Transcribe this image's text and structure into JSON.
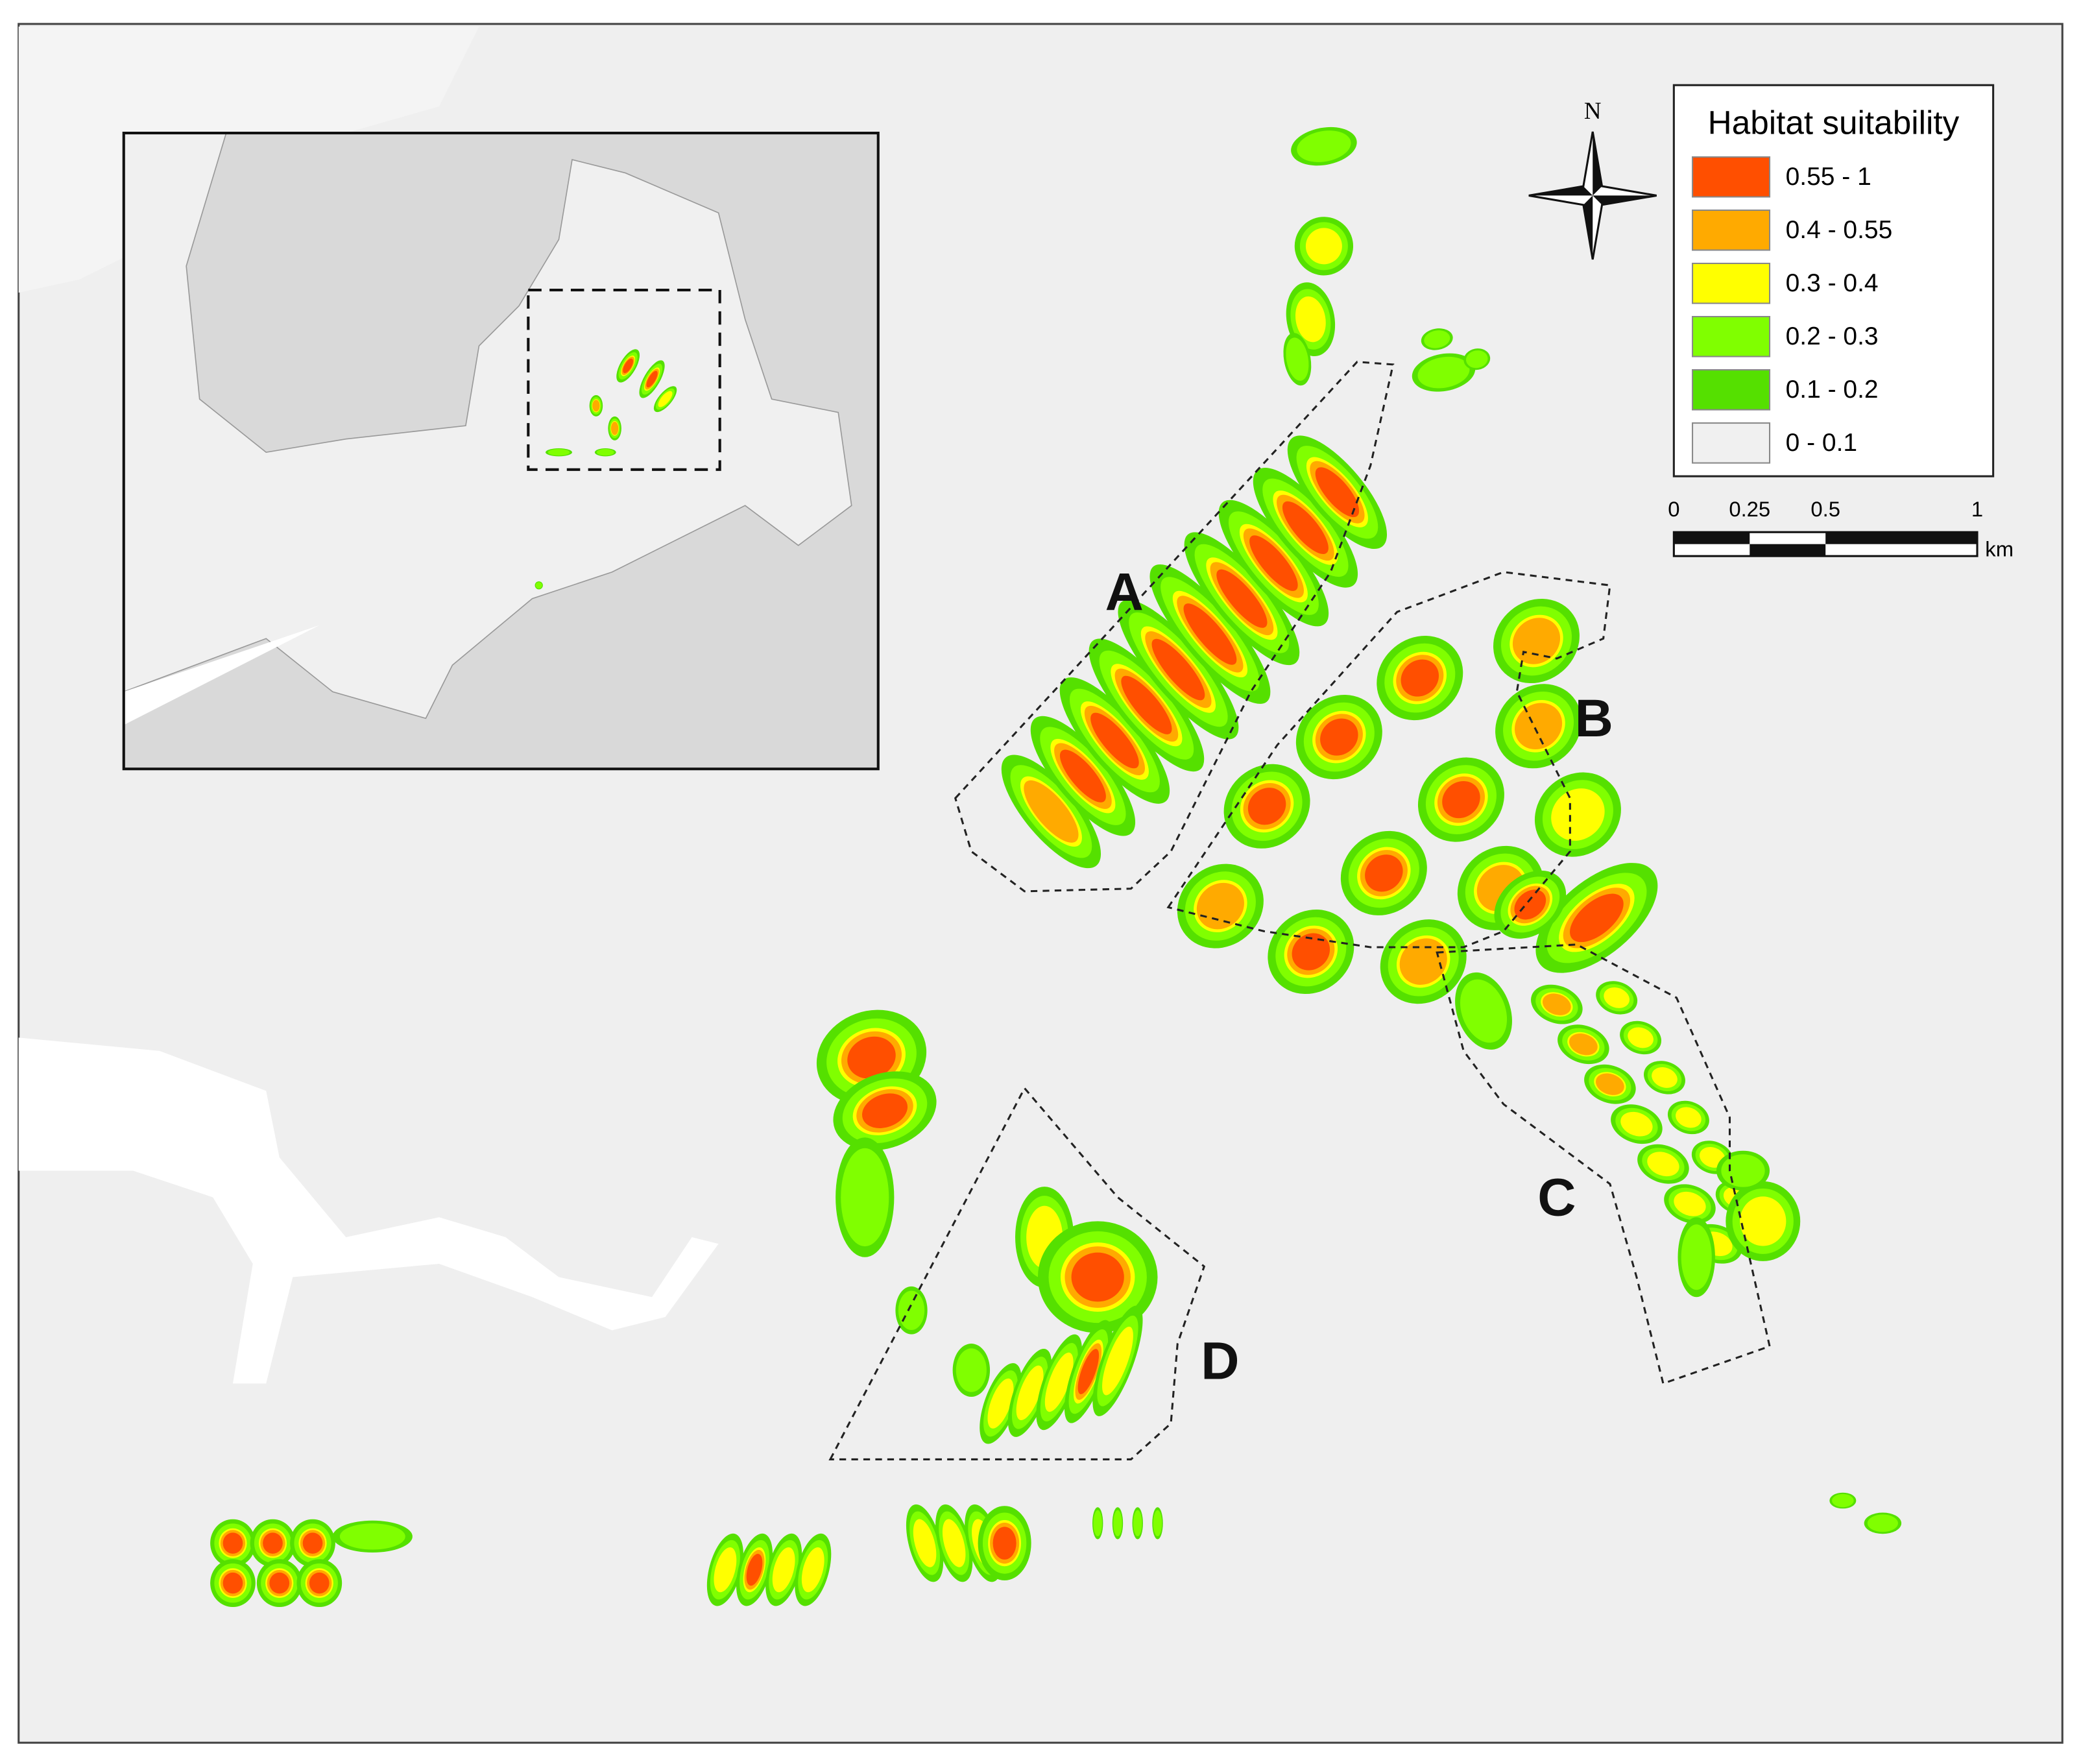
{
  "map": {
    "legend": {
      "title": "Habitat suitability",
      "items": [
        {
          "label": "0.55 - 1",
          "color": "#ff4f00"
        },
        {
          "label": "0.4 - 0.55",
          "color": "#ffaa00"
        },
        {
          "label": "0.3 - 0.4",
          "color": "#ffff00"
        },
        {
          "label": "0.2 - 0.3",
          "color": "#80ff00"
        },
        {
          "label": "0.1 - 0.2",
          "color": "#55e000"
        },
        {
          "label": "0 - 0.1",
          "color": "#f0f0f0"
        }
      ]
    },
    "north": "N",
    "scale": {
      "labels": [
        "0",
        "0.25",
        "0.5",
        "1"
      ],
      "unit": "km"
    },
    "regions": [
      "A",
      "B",
      "C",
      "D"
    ]
  }
}
